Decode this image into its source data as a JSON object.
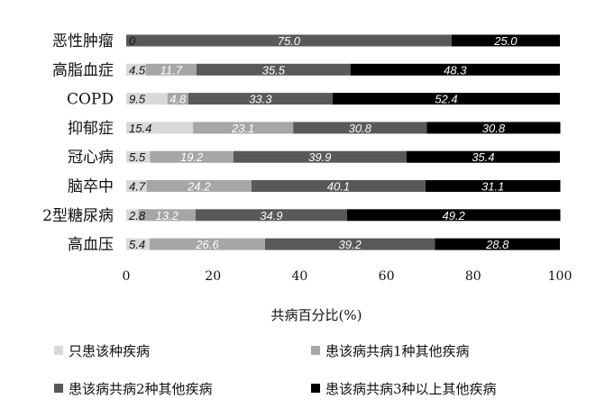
{
  "chart_data": {
    "type": "bar",
    "orientation": "horizontal",
    "stacked": true,
    "title": "",
    "xlabel": "共病百分比(%)",
    "ylabel": "",
    "xlim": [
      0,
      100
    ],
    "xticks": [
      0,
      20,
      40,
      60,
      80,
      100
    ],
    "grid": false,
    "legend_position": "bottom",
    "categories": [
      "恶性肿瘤",
      "高脂血症",
      "COPD",
      "抑郁症",
      "冠心病",
      "脑卒中",
      "2型糖尿病",
      "高血压"
    ],
    "series": [
      {
        "name": "只患该种疾病",
        "color": "#d9d9d9",
        "label_color": "#111111",
        "values": [
          0,
          4.5,
          9.5,
          15.4,
          5.5,
          4.7,
          2.8,
          5.4
        ],
        "labels": [
          "0",
          "4.5",
          "9.5",
          "15.4",
          "5.5",
          "4.7",
          "2.8",
          "5.4"
        ]
      },
      {
        "name": "患该病共病1种其他疾病",
        "color": "#a6a6a6",
        "label_color": "#ffffff",
        "values": [
          0,
          11.7,
          4.8,
          23.1,
          19.2,
          24.2,
          13.2,
          26.6
        ],
        "labels": [
          "",
          "11.7",
          "4.8",
          "23.1",
          "19.2",
          "24.2",
          "13.2",
          "26.6"
        ]
      },
      {
        "name": "患该病共病2种其他疾病",
        "color": "#595959",
        "label_color": "#ffffff",
        "values": [
          75.0,
          35.5,
          33.3,
          30.8,
          39.9,
          40.1,
          34.9,
          39.2
        ],
        "labels": [
          "75.0",
          "35.5",
          "33.3",
          "30.8",
          "39.9",
          "40.1",
          "34.9",
          "39.2"
        ]
      },
      {
        "name": "患该病共病3种以上其他疾病",
        "color": "#000000",
        "label_color": "#ffffff",
        "values": [
          25.0,
          48.3,
          52.4,
          30.8,
          35.4,
          31.1,
          49.2,
          28.8
        ],
        "labels": [
          "25.0",
          "48.3",
          "52.4",
          "30.8",
          "35.4",
          "31.1",
          "49.2",
          "28.8"
        ]
      }
    ]
  }
}
